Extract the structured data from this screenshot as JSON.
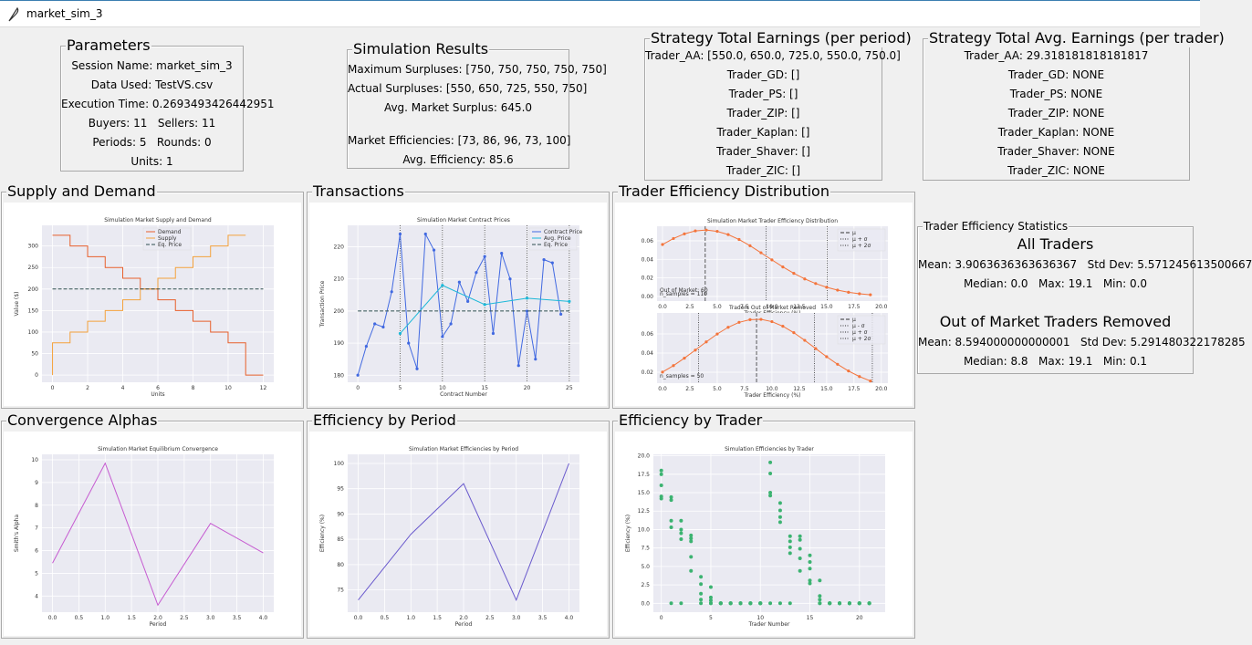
{
  "window": {
    "title": "market_sim_3"
  },
  "parameters": {
    "title": "Parameters",
    "lines": [
      "Session Name: market_sim_3",
      "Data Used: TestVS.csv",
      "Execution Time: 0.2693493426442951",
      "Buyers: 11   Sellers: 11",
      "Periods: 5   Rounds: 0",
      "Units: 1"
    ]
  },
  "simulation_results": {
    "title": "Simulation Results",
    "lines": [
      "Maximum Surpluses: [750, 750, 750, 750, 750]",
      "Actual Surpluses: [550, 650, 725, 550, 750]",
      "Avg. Market Surplus: 645.0",
      "Market Efficiencies: [73, 86, 96, 73, 100]",
      "Avg. Efficiency: 85.6"
    ]
  },
  "strategy_earnings": {
    "title": "Strategy Total Earnings (per period)",
    "lines": [
      "Trader_AA: [550.0, 650.0, 725.0, 550.0, 750.0]",
      "Trader_GD: []",
      "Trader_PS: []",
      "Trader_ZIP: []",
      "Trader_Kaplan: []",
      "Trader_Shaver: []",
      "Trader_ZIC: []"
    ]
  },
  "strategy_avg_earnings": {
    "title": "Strategy Total Avg. Earnings (per trader)",
    "lines": [
      "Trader_AA: 29.318181818181817",
      "Trader_GD: NONE",
      "Trader_PS: NONE",
      "Trader_ZIP: NONE",
      "Trader_Kaplan: NONE",
      "Trader_Shaver: NONE",
      "Trader_ZIC: NONE"
    ]
  },
  "efficiency_statistics": {
    "title": "Trader Efficiency Statistics",
    "groups": [
      {
        "heading": "All Traders",
        "lines": [
          "Mean: 3.9063636363636367   Std Dev: 5.571245613500667",
          "Median: 0.0   Max: 19.1   Min: 0.0"
        ]
      },
      {
        "heading": "Out of Market Traders Removed",
        "lines": [
          "Mean: 8.594000000000001   Std Dev: 5.291480322178285",
          "Median: 8.8   Max: 19.1   Min: 0.1"
        ]
      }
    ]
  },
  "panels": [
    "Supply and Demand",
    "Transactions",
    "Trader Efficiency Distribution",
    "Convergence Alphas",
    "Efficiency by Period",
    "Efficiency by Trader"
  ],
  "chart_data": [
    {
      "type": "line",
      "title": "Simulation Market Supply and Demand",
      "xlabel": "Units",
      "ylabel": "Value ($)",
      "step": "post",
      "legend": "upper center",
      "grid": true,
      "xlim": [
        -0.6,
        12.6
      ],
      "xticks": [
        0,
        2,
        4,
        6,
        8,
        10,
        12
      ],
      "ylim": [
        -16.7,
        348
      ],
      "yticks": [
        0,
        50,
        100,
        150,
        200,
        250,
        300
      ],
      "series": [
        {
          "name": "Demand",
          "color": "#e8602c",
          "x": [
            0,
            1,
            2,
            3,
            4,
            5,
            6,
            7,
            8,
            9,
            10,
            11,
            12
          ],
          "values": [
            325,
            300,
            275,
            250,
            225,
            200,
            175,
            150,
            125,
            100,
            75,
            0,
            0
          ]
        },
        {
          "name": "Supply",
          "color": "#f4a23c",
          "x": [
            0,
            0,
            1,
            2,
            3,
            4,
            5,
            6,
            7,
            8,
            9,
            10,
            11
          ],
          "values": [
            0,
            75,
            100,
            125,
            150,
            175,
            200,
            225,
            250,
            275,
            300,
            325,
            325
          ]
        },
        {
          "name": "Eq. Price",
          "color": "#2f4f4f",
          "style": "dashed",
          "x": [
            0,
            12
          ],
          "values": [
            200,
            200
          ]
        }
      ]
    },
    {
      "type": "line",
      "title": "Simulation Market Contract Prices",
      "xlabel": "Contract Number",
      "ylabel": "Transaction Price",
      "legend": "upper right",
      "grid": true,
      "xlim": [
        -1.2,
        26.2
      ],
      "xticks": [
        0,
        5,
        10,
        15,
        20,
        25
      ],
      "ylim": [
        177.8,
        226.7
      ],
      "yticks": [
        180,
        190,
        200,
        210,
        220
      ],
      "vlines": [
        {
          "x": 5,
          "style": "dotted"
        },
        {
          "x": 10,
          "style": "dotted"
        },
        {
          "x": 15,
          "style": "dotted"
        },
        {
          "x": 20,
          "style": "dotted"
        },
        {
          "x": 25,
          "style": "dotted"
        }
      ],
      "series": [
        {
          "name": "Contract Price",
          "color": "#4169e1",
          "marker": true,
          "x": [
            0,
            1,
            2,
            3,
            4,
            5,
            6,
            7,
            8,
            9,
            10,
            11,
            12,
            13,
            14,
            15,
            16,
            17,
            18,
            19,
            20,
            21,
            22,
            23,
            24
          ],
          "values": [
            180,
            189,
            196,
            195,
            206,
            224,
            190,
            182,
            224,
            219,
            192,
            196,
            209,
            203,
            212,
            217,
            193,
            218,
            210,
            183,
            200,
            185,
            216,
            215,
            199
          ]
        },
        {
          "name": "Avg. Price",
          "color": "#1cb8d8",
          "marker": true,
          "x": [
            5,
            10,
            15,
            20,
            25
          ],
          "values": [
            193,
            208,
            202,
            204,
            203
          ]
        },
        {
          "name": "Eq. Price",
          "color": "#2f4f4f",
          "style": "dashed",
          "x": [
            0,
            25
          ],
          "values": [
            200,
            200
          ]
        }
      ]
    },
    {
      "type": "line",
      "title": "Simulation Market Trader Efficiency Distribution",
      "xlabel": "Trader Efficiency (%)",
      "legend": "upper right",
      "grid": true,
      "xlim": [
        -0.5,
        20.6
      ],
      "xticks": [
        {
          "value": 0,
          "label": "0.0"
        },
        2.5,
        {
          "value": 5,
          "label": "5.0"
        },
        7.5,
        {
          "value": 10,
          "label": "10.0"
        },
        12.5,
        {
          "value": 15,
          "label": "15.0"
        },
        17.5,
        {
          "value": 20,
          "label": "20.0"
        }
      ],
      "ylim": [
        -0.005,
        0.0757
      ],
      "yticks": [
        {
          "value": 0,
          "label": "0.00"
        },
        0.02,
        0.04,
        0.06
      ],
      "annotations": [
        "n_samples = 110",
        "Out of Market: 60"
      ],
      "vlines": [
        {
          "name": "μ",
          "x": 3.906,
          "style": "dashed"
        },
        {
          "name": "μ + σ",
          "x": 9.477,
          "style": "dotted"
        },
        {
          "name": "μ + 2σ",
          "x": 15.048,
          "style": "dotted"
        }
      ],
      "series": [
        {
          "color": "#f4743b",
          "marker": true,
          "x": [
            0,
            1,
            2,
            3,
            4,
            5,
            6,
            7,
            8,
            9,
            10,
            11,
            12,
            13,
            14,
            15,
            16,
            17,
            18,
            19
          ],
          "values": [
            0.056,
            0.0625,
            0.0675,
            0.0707,
            0.0716,
            0.0702,
            0.0667,
            0.0614,
            0.0547,
            0.0471,
            0.0394,
            0.0318,
            0.0249,
            0.0189,
            0.0139,
            0.0099,
            0.0068,
            0.0045,
            0.0029,
            0.0018
          ]
        }
      ]
    },
    {
      "type": "line",
      "title": "Traders Out of Market Removed",
      "xlabel": "Trader Efficiency (%)",
      "legend": "upper right",
      "grid": true,
      "xlim": [
        -0.5,
        20.6
      ],
      "xticks": [
        {
          "value": 0,
          "label": "0.0"
        },
        2.5,
        {
          "value": 5,
          "label": "5.0"
        },
        7.5,
        {
          "value": 10,
          "label": "10.0"
        },
        12.5,
        {
          "value": 15,
          "label": "15.0"
        },
        17.5,
        {
          "value": 20,
          "label": "20.0"
        }
      ],
      "ylim": [
        0.0086,
        0.0819
      ],
      "yticks": [
        0.02,
        0.04,
        0.06
      ],
      "annotations": [
        "n_samples = 50"
      ],
      "vlines": [
        {
          "name": "μ",
          "x": 8.594,
          "style": "dashed"
        },
        {
          "name": "μ - σ",
          "x": 3.303,
          "style": "dotted"
        },
        {
          "name": "μ + σ",
          "x": 13.886,
          "style": "dotted"
        },
        {
          "name": "μ + 2σ",
          "x": 19.177,
          "style": "dotted"
        }
      ],
      "series": [
        {
          "color": "#f4743b",
          "marker": true,
          "x": [
            0,
            1,
            2,
            3,
            4,
            5,
            6,
            7,
            8,
            9,
            10,
            11,
            12,
            13,
            14,
            15,
            16,
            17,
            18,
            19
          ],
          "values": [
            0.0202,
            0.0269,
            0.0347,
            0.0431,
            0.0517,
            0.0599,
            0.0669,
            0.0721,
            0.0749,
            0.0752,
            0.0728,
            0.068,
            0.0613,
            0.0533,
            0.0447,
            0.0362,
            0.0283,
            0.0213,
            0.0155,
            0.0109
          ]
        }
      ]
    },
    {
      "type": "line",
      "title": "Simulation Market Equilibrium Convergence",
      "xlabel": "Period",
      "ylabel": "Smith's Alpha",
      "grid": true,
      "x": [
        0,
        1,
        2,
        3,
        4
      ],
      "xlim": [
        -0.2,
        4.2
      ],
      "xticks": [
        {
          "value": 0,
          "label": "0.0"
        },
        0.5,
        {
          "value": 1,
          "label": "1.0"
        },
        1.5,
        {
          "value": 2,
          "label": "2.0"
        },
        2.5,
        {
          "value": 3,
          "label": "3.0"
        },
        3.5,
        {
          "value": 4,
          "label": "4.0"
        }
      ],
      "ylim": [
        3.29,
        10.24
      ],
      "yticks": [
        4,
        5,
        6,
        7,
        8,
        9,
        10
      ],
      "series": [
        {
          "color": "#c65bd1",
          "values": [
            5.45,
            9.85,
            3.6,
            7.2,
            5.9
          ]
        }
      ]
    },
    {
      "type": "line",
      "title": "Simulation Market Efficiencies by Period",
      "xlabel": "Period",
      "ylabel": "Efficiency (%)",
      "grid": true,
      "x": [
        0,
        1,
        2,
        3,
        4
      ],
      "xlim": [
        -0.2,
        4.2
      ],
      "xticks": [
        {
          "value": 0,
          "label": "0.0"
        },
        0.5,
        {
          "value": 1,
          "label": "1.0"
        },
        1.5,
        {
          "value": 2,
          "label": "2.0"
        },
        2.5,
        {
          "value": 3,
          "label": "3.0"
        },
        3.5,
        {
          "value": 4,
          "label": "4.0"
        }
      ],
      "ylim": [
        70.6,
        101.8
      ],
      "yticks": [
        75,
        80,
        85,
        90,
        95,
        100
      ],
      "series": [
        {
          "color": "#6a5acd",
          "values": [
            73,
            86,
            96,
            73,
            100
          ]
        }
      ]
    },
    {
      "type": "scatter",
      "title": "Simulation Efficiencies by Trader",
      "xlabel": "Trader Number",
      "ylabel": "Efficiency (%)",
      "grid": true,
      "color": "#3cb371",
      "xlim": [
        -0.8,
        22.6
      ],
      "xticks": [
        0,
        5,
        10,
        15,
        20
      ],
      "ylim": [
        -1.2,
        20.2
      ],
      "yticks": [
        {
          "value": 0,
          "label": "0.0"
        },
        2.5,
        {
          "value": 5,
          "label": "5.0"
        },
        7.5,
        {
          "value": 10,
          "label": "10.0"
        },
        12.5,
        {
          "value": 15,
          "label": "15.0"
        },
        17.5,
        {
          "value": 20,
          "label": "20.0"
        }
      ],
      "x": [
        0,
        0,
        0,
        0,
        0,
        1,
        1,
        1,
        1,
        1,
        2,
        2,
        2,
        2,
        2,
        3,
        3,
        3,
        3,
        3,
        4,
        4,
        4,
        4,
        4,
        5,
        5,
        5,
        5,
        5,
        6,
        6,
        6,
        6,
        6,
        7,
        7,
        7,
        7,
        7,
        8,
        8,
        8,
        8,
        8,
        9,
        9,
        9,
        9,
        9,
        10,
        10,
        10,
        10,
        10,
        11,
        11,
        11,
        11,
        11,
        12,
        12,
        12,
        12,
        12,
        13,
        13,
        13,
        13,
        13,
        14,
        14,
        14,
        14,
        14,
        15,
        15,
        15,
        15,
        15,
        16,
        16,
        16,
        16,
        16,
        17,
        17,
        17,
        17,
        17,
        18,
        18,
        18,
        18,
        18,
        19,
        19,
        19,
        19,
        19,
        20,
        20,
        20,
        20,
        20,
        21,
        21,
        21,
        21,
        21
      ],
      "values": [
        18,
        17.5,
        16,
        14.5,
        14.2,
        14.4,
        14,
        11.2,
        10.3,
        0,
        11.2,
        10,
        9.5,
        8.7,
        0,
        9.2,
        8.8,
        8.4,
        6.3,
        4.4,
        3.6,
        2.6,
        1.3,
        0.5,
        0,
        2.2,
        0.8,
        0.4,
        0,
        0,
        0,
        0,
        0,
        0,
        0,
        0,
        0,
        0,
        0,
        0,
        0,
        0,
        0,
        0,
        0,
        0,
        0,
        0,
        0,
        0,
        0,
        0,
        0,
        0,
        0,
        19.1,
        17.6,
        15,
        14.6,
        0,
        13.6,
        12.6,
        11.7,
        11,
        0,
        9.1,
        8.4,
        7.6,
        6.8,
        0,
        9.1,
        8.6,
        7.4,
        6.1,
        4.4,
        6.5,
        5.6,
        4.7,
        3.1,
        2.7,
        3.1,
        1,
        0.5,
        0,
        0,
        0,
        0,
        0,
        0,
        0,
        0,
        0,
        0,
        0,
        0,
        0,
        0,
        0,
        0,
        0,
        0,
        0,
        0,
        0,
        0,
        0,
        0,
        0,
        0,
        0
      ]
    }
  ]
}
